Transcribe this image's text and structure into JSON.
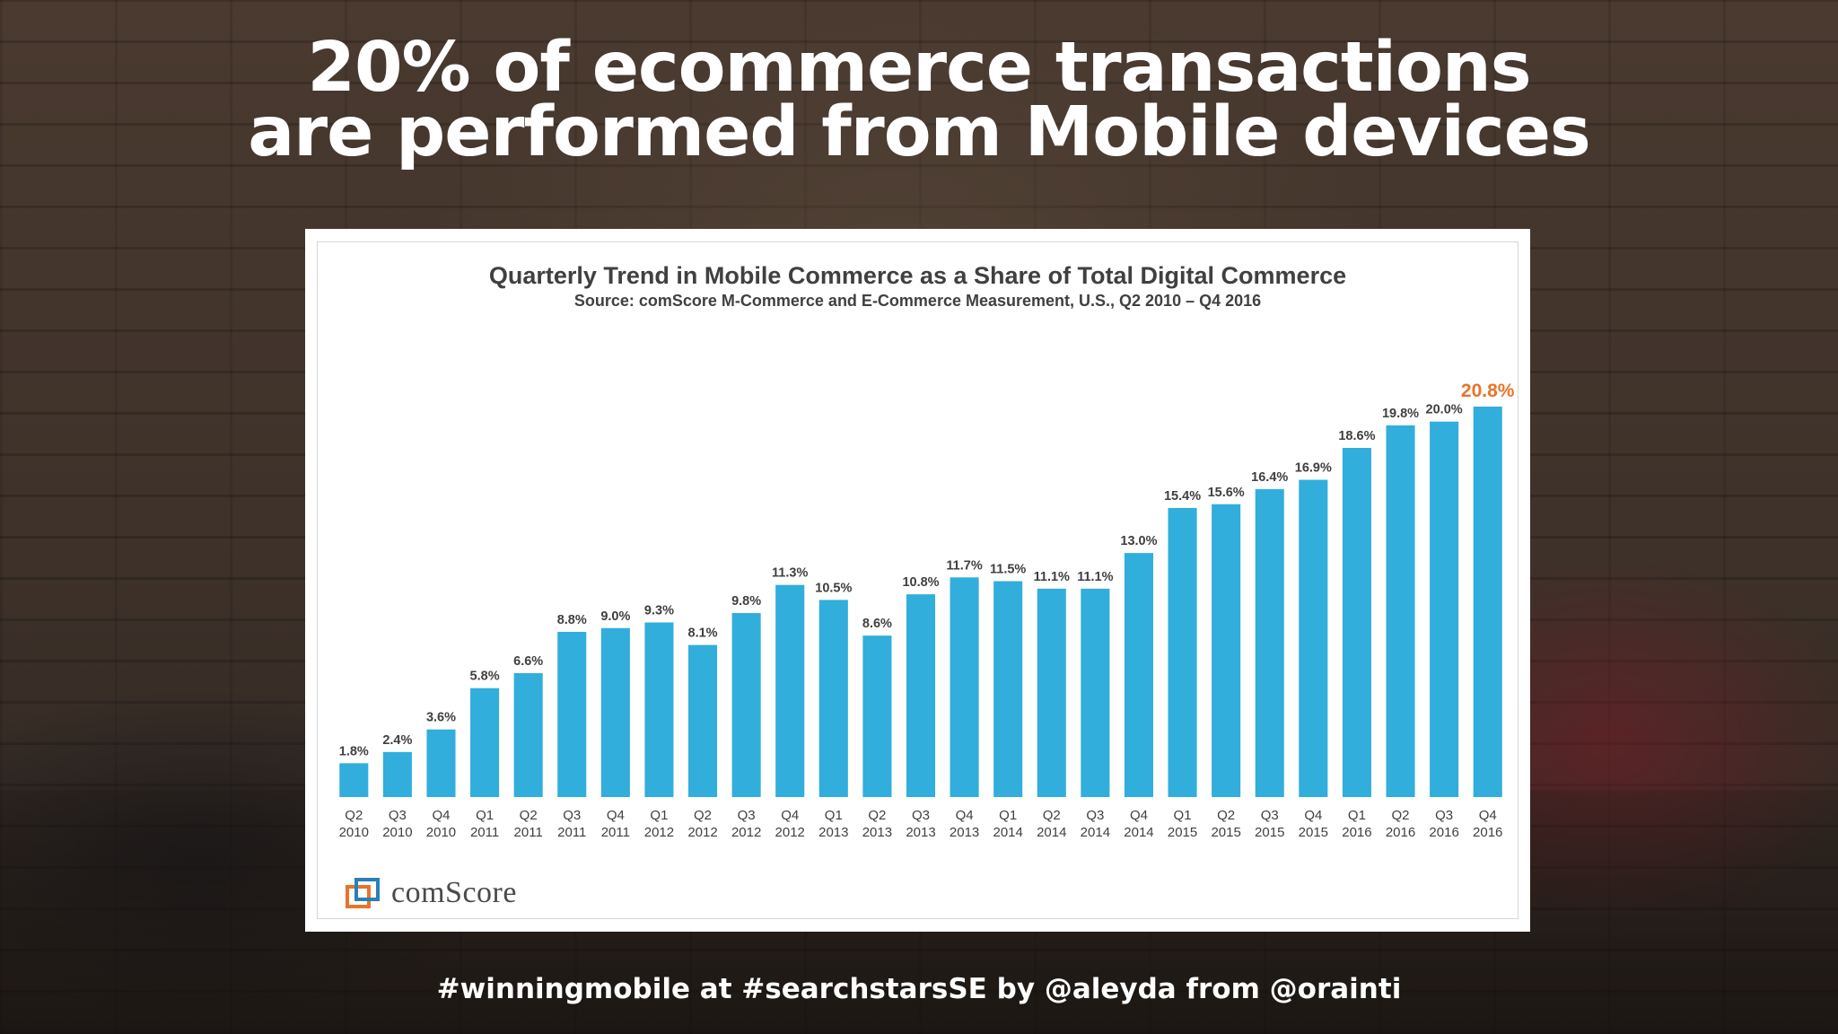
{
  "slide": {
    "title_line1": "20% of ecommerce transactions",
    "title_line2": "are performed from Mobile devices",
    "footer": "#winningmobile at #searchstarsSE by @aleyda from @orainti"
  },
  "logo": {
    "name": "comScore-logo-icon",
    "text": "comScore"
  },
  "colors": {
    "bar": "#31aedb",
    "highlight_label": "#e8742a",
    "label": "#404040"
  },
  "chart_data": {
    "type": "bar",
    "title": "Quarterly Trend in Mobile Commerce as a Share of Total Digital Commerce",
    "subtitle": "Source: comScore M-Commerce and E-Commerce Measurement, U.S.,  Q2 2010 – Q4 2016",
    "categories": [
      [
        "Q2",
        "2010"
      ],
      [
        "Q3",
        "2010"
      ],
      [
        "Q4",
        "2010"
      ],
      [
        "Q1",
        "2011"
      ],
      [
        "Q2",
        "2011"
      ],
      [
        "Q3",
        "2011"
      ],
      [
        "Q4",
        "2011"
      ],
      [
        "Q1",
        "2012"
      ],
      [
        "Q2",
        "2012"
      ],
      [
        "Q3",
        "2012"
      ],
      [
        "Q4",
        "2012"
      ],
      [
        "Q1",
        "2013"
      ],
      [
        "Q2",
        "2013"
      ],
      [
        "Q3",
        "2013"
      ],
      [
        "Q4",
        "2013"
      ],
      [
        "Q1",
        "2014"
      ],
      [
        "Q2",
        "2014"
      ],
      [
        "Q3",
        "2014"
      ],
      [
        "Q4",
        "2014"
      ],
      [
        "Q1",
        "2015"
      ],
      [
        "Q2",
        "2015"
      ],
      [
        "Q3",
        "2015"
      ],
      [
        "Q4",
        "2015"
      ],
      [
        "Q1",
        "2016"
      ],
      [
        "Q2",
        "2016"
      ],
      [
        "Q3",
        "2016"
      ],
      [
        "Q4",
        "2016"
      ]
    ],
    "values": [
      1.8,
      2.4,
      3.6,
      5.8,
      6.6,
      8.8,
      9.0,
      9.3,
      8.1,
      9.8,
      11.3,
      10.5,
      8.6,
      10.8,
      11.7,
      11.5,
      11.1,
      11.1,
      13.0,
      15.4,
      15.6,
      16.4,
      16.9,
      18.6,
      19.8,
      20.0,
      20.8
    ],
    "data_labels": [
      "1.8%",
      "2.4%",
      "3.6%",
      "5.8%",
      "6.6%",
      "8.8%",
      "9.0%",
      "9.3%",
      "8.1%",
      "9.8%",
      "11.3%",
      "10.5%",
      "8.6%",
      "10.8%",
      "11.7%",
      "11.5%",
      "11.1%",
      "11.1%",
      "13.0%",
      "15.4%",
      "15.6%",
      "16.4%",
      "16.9%",
      "18.6%",
      "19.8%",
      "20.0%",
      "20.8%"
    ],
    "highlight_index": 26,
    "ylim": [
      0,
      20.8
    ],
    "grid": false,
    "legend": "none"
  }
}
